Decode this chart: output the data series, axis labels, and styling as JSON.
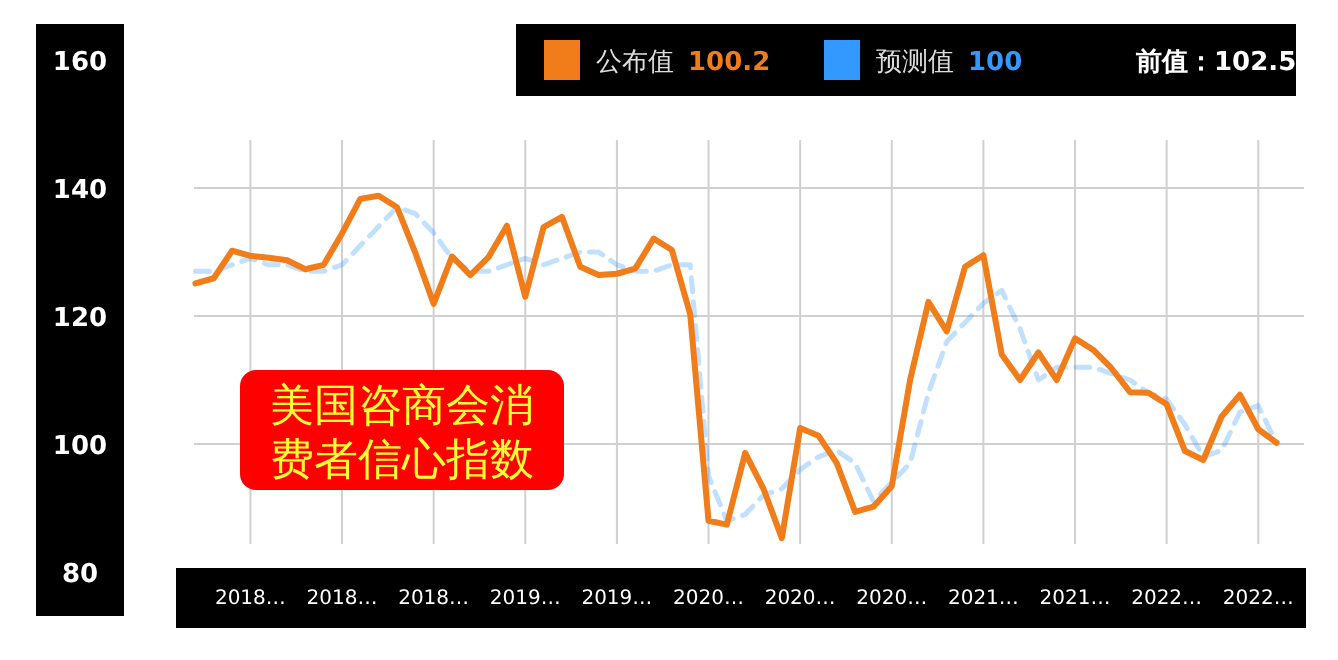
{
  "chart_data": {
    "type": "line",
    "title": "美国咨商会消费者信心指数",
    "categories": [
      null,
      null,
      null,
      "2018…",
      null,
      null,
      null,
      null,
      "2018…",
      null,
      null,
      null,
      null,
      "2018…",
      null,
      null,
      null,
      null,
      "2019…",
      null,
      null,
      null,
      null,
      "2019…",
      null,
      null,
      null,
      null,
      "2020…",
      null,
      null,
      null,
      null,
      "2020…",
      null,
      null,
      null,
      null,
      "2020…",
      null,
      null,
      null,
      null,
      "2021…",
      null,
      null,
      null,
      null,
      "2021…",
      null,
      null,
      null,
      null,
      "2022…",
      null,
      null,
      null,
      null,
      "2022…",
      null
    ],
    "series": [
      {
        "name": "公布值",
        "color": "#f07c1a",
        "line_style": "solid",
        "values": [
          125.1,
          125.9,
          130.2,
          129.4,
          129.1,
          128.7,
          127.3,
          128.0,
          132.9,
          138.3,
          138.8,
          137.0,
          129.9,
          121.9,
          129.3,
          126.4,
          129.2,
          134.1,
          123.0,
          133.9,
          135.5,
          127.7,
          126.4,
          126.6,
          127.4,
          132.1,
          130.3,
          120.3,
          88.0,
          87.4,
          98.6,
          93.0,
          85.3,
          102.5,
          101.3,
          97.0,
          89.4,
          90.2,
          93.4,
          110.0,
          122.2,
          117.6,
          127.7,
          129.5,
          114.0,
          110.0,
          114.3,
          110.0,
          116.5,
          114.7,
          111.8,
          108.1,
          108.0,
          106.2,
          98.9,
          97.5,
          104.3,
          107.7,
          102.3,
          100.2
        ]
      },
      {
        "name": "预测值",
        "color": "#3399ff",
        "line_style": "dashed",
        "values": [
          127,
          127,
          128,
          129,
          128,
          128,
          127,
          127,
          128,
          131,
          134,
          137,
          136,
          133,
          129,
          127,
          127,
          128,
          129,
          128,
          129,
          130,
          130,
          128,
          127,
          127,
          128,
          128,
          95,
          88,
          89,
          92,
          93,
          96,
          98,
          99,
          97,
          91,
          94,
          97,
          108,
          116,
          119,
          122,
          124,
          118,
          110,
          112,
          112,
          112,
          111,
          110,
          108,
          107,
          103,
          98,
          99,
          105,
          106,
          100
        ]
      }
    ],
    "annotations": [
      "100.2",
      "100",
      "前值：102.5"
    ],
    "ylim": [
      80,
      160
    ],
    "yticks": [
      80,
      100,
      120,
      140,
      160
    ],
    "grid": true,
    "legend": "top"
  }
}
